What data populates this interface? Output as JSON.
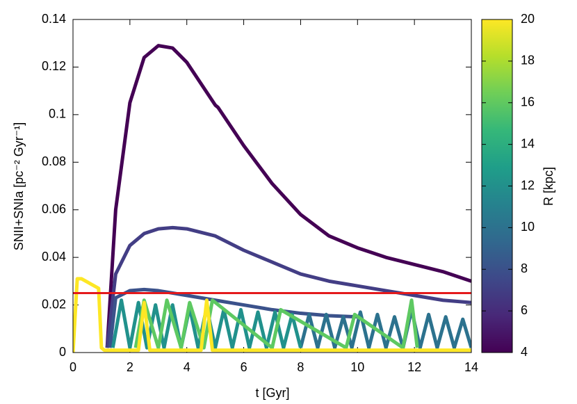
{
  "chart_data": {
    "type": "line",
    "xlabel": "t [Gyr]",
    "ylabel": "SNII+SNIa [pc⁻² Gyr⁻¹]",
    "xlim": [
      0,
      14
    ],
    "xticks": [
      0,
      2,
      4,
      6,
      8,
      10,
      12,
      14
    ],
    "ylim": [
      0,
      0.14
    ],
    "yticks": [
      0,
      0.02,
      0.04,
      0.06,
      0.08,
      0.1,
      0.12,
      0.14
    ],
    "hline": {
      "value": 0.025,
      "color": "#e41a1c"
    },
    "colorbar": {
      "label": "R [kpc]",
      "lim": [
        4,
        20
      ],
      "ticks": [
        4,
        6,
        8,
        10,
        12,
        14,
        16,
        18,
        20
      ],
      "colors": [
        "#440154",
        "#482878",
        "#3e4989",
        "#31688e",
        "#26828e",
        "#1f9e89",
        "#35b779",
        "#6ece58",
        "#b5de2b",
        "#fde725"
      ]
    },
    "series": [
      {
        "color": "#440154",
        "x": [
          1.2,
          1.5,
          2,
          2.5,
          3,
          3.5,
          4,
          4.5,
          5,
          5.1,
          6,
          7,
          8,
          9,
          10,
          10.5,
          11,
          12,
          13,
          14
        ],
        "values": [
          0.002,
          0.06,
          0.105,
          0.124,
          0.129,
          0.128,
          0.122,
          0.113,
          0.104,
          0.103,
          0.087,
          0.071,
          0.058,
          0.049,
          0.044,
          0.042,
          0.04,
          0.037,
          0.034,
          0.03
        ]
      },
      {
        "color": "#433e85",
        "x": [
          1.2,
          1.5,
          2,
          2.5,
          3,
          3.5,
          4,
          5,
          6,
          7,
          8,
          9,
          10,
          11,
          12,
          13,
          14
        ],
        "values": [
          0.002,
          0.033,
          0.045,
          0.05,
          0.052,
          0.0525,
          0.052,
          0.049,
          0.043,
          0.038,
          0.033,
          0.03,
          0.028,
          0.026,
          0.024,
          0.022,
          0.021
        ]
      },
      {
        "color": "#3b528b",
        "x": [
          1.3,
          1.5,
          2,
          2.5,
          3,
          4,
          5,
          6,
          7,
          8,
          9,
          10
        ],
        "values": [
          0.002,
          0.023,
          0.026,
          0.0265,
          0.026,
          0.024,
          0.022,
          0.02,
          0.018,
          0.0165,
          0.0155,
          0.015
        ]
      },
      {
        "color": "#2c728e",
        "x": [
          8,
          8.3,
          8.6,
          8.9,
          9.2,
          9.5,
          9.8,
          10.1,
          10.4,
          10.7,
          11,
          11.3,
          11.6,
          11.9,
          12.2,
          12.5,
          12.8,
          13.1,
          13.4,
          13.7,
          14
        ],
        "values": [
          0.002,
          0.016,
          0.002,
          0.016,
          0.002,
          0.015,
          0.002,
          0.017,
          0.002,
          0.016,
          0.002,
          0.015,
          0.002,
          0.018,
          0.002,
          0.016,
          0.002,
          0.015,
          0.002,
          0.014,
          0.002
        ]
      },
      {
        "color": "#21918c",
        "x": [
          1.4,
          1.7,
          2,
          2.3,
          2.6,
          2.9,
          3.2,
          3.5,
          3.8,
          4.1,
          4.4,
          4.7,
          5,
          5.3,
          5.6,
          5.9,
          6.2,
          6.5,
          6.8,
          7.1,
          7.4,
          7.7,
          8
        ],
        "values": [
          0.002,
          0.022,
          0.002,
          0.021,
          0.002,
          0.02,
          0.002,
          0.02,
          0.002,
          0.019,
          0.002,
          0.019,
          0.002,
          0.018,
          0.002,
          0.018,
          0.002,
          0.017,
          0.002,
          0.017,
          0.002,
          0.016,
          0.002
        ]
      },
      {
        "color": "#5ec962",
        "x": [
          2.2,
          2.5,
          3,
          3.3,
          3.8,
          4.1,
          4.6,
          4.9,
          7,
          7.3,
          9.6,
          9.9,
          11.6,
          11.9,
          12.1
        ],
        "values": [
          0.002,
          0.022,
          0.002,
          0.022,
          0.002,
          0.021,
          0.002,
          0.022,
          0.002,
          0.018,
          0.002,
          0.016,
          0.002,
          0.022,
          0.002
        ]
      },
      {
        "color": "#fde725",
        "x": [
          0,
          0.15,
          0.3,
          0.6,
          0.9,
          1,
          1.1,
          2.3,
          2.5,
          2.7,
          4.5,
          4.7,
          4.9,
          14
        ],
        "values": [
          0,
          0.031,
          0.031,
          0.029,
          0.027,
          0.002,
          0.001,
          0.001,
          0.021,
          0.001,
          0.001,
          0.022,
          0.001,
          0.001
        ]
      }
    ]
  }
}
